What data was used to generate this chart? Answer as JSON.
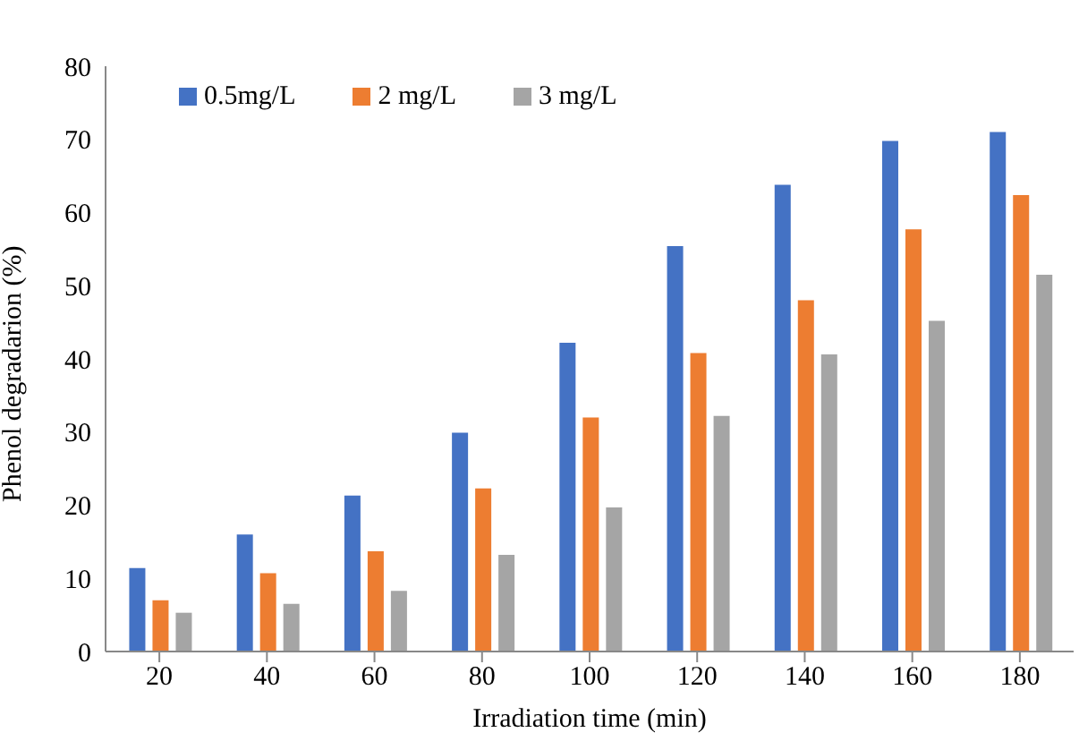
{
  "chart_data": {
    "type": "bar",
    "xlabel": "Irradiation time (min)",
    "ylabel": "Phenol degradarion (%)",
    "categories": [
      "20",
      "40",
      "60",
      "80",
      "100",
      "120",
      "140",
      "160",
      "180"
    ],
    "series": [
      {
        "name": "0.5mg/L",
        "color": "#4472c4",
        "values": [
          11.4,
          16.0,
          21.3,
          29.9,
          42.2,
          55.4,
          63.8,
          69.8,
          71.0
        ]
      },
      {
        "name": "2 mg/L",
        "color": "#ed7d31",
        "values": [
          7.0,
          10.7,
          13.7,
          22.3,
          32.0,
          40.8,
          48.0,
          57.7,
          62.4
        ]
      },
      {
        "name": "3 mg/L",
        "color": "#a5a5a5",
        "values": [
          5.3,
          6.5,
          8.3,
          13.2,
          19.7,
          32.2,
          40.6,
          45.2,
          51.5
        ]
      }
    ],
    "ylim": [
      0,
      80
    ],
    "yticks": [
      0,
      10,
      20,
      30,
      40,
      50,
      60,
      70,
      80
    ],
    "grid": false,
    "legend": "top left"
  }
}
